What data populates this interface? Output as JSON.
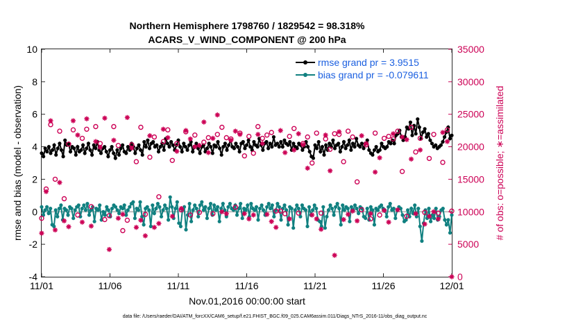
{
  "chart_data": {
    "type": "line",
    "title": "Northern Hemisphere 1798760 / 1829542 = 98.318%",
    "subtitle": "ACARS_V_WIND_COMPONENT @ 200 hPa",
    "xlabel": "Nov.01,2016 00:00:00 start",
    "ylabel": "rmse and bias (model - observation)",
    "ylabel_right": "# of obs: o=possible; ∗=assimilated",
    "footer": "data file: /Users/raeder/DAI/ATM_forcXX/CAM6_setup/f.e21.FHIST_BGC.f09_025.CAM6assim.011/Diags_NTrS_2016-11/obs_diag_output.nc",
    "xlim": [
      0,
      30
    ],
    "ylim": [
      -4,
      10
    ],
    "ylim_right": [
      0,
      35000
    ],
    "x_ticks": [
      0,
      5,
      10,
      15,
      20,
      25,
      30
    ],
    "x_tick_labels": [
      "11/01",
      "11/06",
      "11/11",
      "11/16",
      "11/21",
      "11/26",
      "12/01"
    ],
    "y_ticks": [
      -4,
      -2,
      0,
      2,
      4,
      6,
      8,
      10
    ],
    "y_tick_labels": [
      "-4",
      "-2",
      "0",
      "2",
      "4",
      "6",
      "8",
      "10"
    ],
    "y_right_ticks": [
      0,
      5000,
      10000,
      15000,
      20000,
      25000,
      30000,
      35000
    ],
    "y_right_tick_labels": [
      "0",
      "5000",
      "10000",
      "15000",
      "20000",
      "25000",
      "30000",
      "35000"
    ],
    "legend": [
      {
        "name": "rmse grand pr = 3.9515",
        "color": "#000000"
      },
      {
        "name": "bias grand pr = -0.079611",
        "color": "#108080"
      }
    ],
    "series": [
      {
        "name": "rmse",
        "color": "#000000",
        "values": [
          3.6,
          3.4,
          3.9,
          3.7,
          4.0,
          3.6,
          3.8,
          4.1,
          3.5,
          3.9,
          4.2,
          3.8,
          3.4,
          4.4,
          4.1,
          4.2,
          3.7,
          4.0,
          3.9,
          3.5,
          4.0,
          3.7,
          3.8,
          4.1,
          3.6,
          3.9,
          4.2,
          3.8,
          3.5,
          4.1,
          3.9,
          4.3,
          3.8,
          3.6,
          3.9,
          4.0,
          3.7,
          3.4,
          3.8,
          4.0,
          3.6,
          3.3,
          3.8,
          3.5,
          3.9,
          4.1,
          3.7,
          3.6,
          4.0,
          3.8,
          4.2,
          4.0,
          3.6,
          3.9,
          4.1,
          3.8,
          3.5,
          4.3,
          4.0,
          4.4,
          3.9,
          4.2,
          4.3,
          4.0,
          4.1,
          3.7,
          4.0,
          4.2,
          3.8,
          4.5,
          4.2,
          4.0,
          4.3,
          4.1,
          3.8,
          4.1,
          4.4,
          4.0,
          3.7,
          4.2,
          4.0,
          3.8,
          4.1,
          4.3,
          3.7,
          4.0,
          4.2,
          3.9,
          3.6,
          4.0,
          4.1,
          3.7,
          3.9,
          4.2,
          4.0,
          3.6,
          4.1,
          4.0,
          4.3,
          3.9,
          3.5,
          4.0,
          4.2,
          3.8,
          4.1,
          4.4,
          4.0,
          3.9,
          4.2,
          4.0,
          3.7,
          4.2,
          4.3,
          3.9,
          4.1,
          4.4,
          4.0,
          3.8,
          4.3,
          4.1,
          4.0,
          4.5,
          4.1,
          3.8,
          4.2,
          4.3,
          3.9,
          4.2,
          4.0,
          4.6,
          4.1,
          4.2,
          4.0,
          4.3,
          4.0,
          4.4,
          4.2,
          4.1,
          4.3,
          3.8,
          4.2,
          4.0,
          3.9,
          4.2,
          4.1,
          3.8,
          4.0,
          4.3,
          4.0,
          3.7,
          3.4,
          3.3,
          4.1,
          3.9,
          4.3,
          3.7,
          4.0,
          3.5,
          4.1,
          3.8,
          4.2,
          4.0,
          4.4,
          3.9,
          4.1,
          4.2,
          3.7,
          4.0,
          4.3,
          3.9,
          4.1,
          4.4,
          3.8,
          4.2,
          4.0,
          4.5,
          4.1,
          4.0,
          4.2,
          3.9,
          4.2,
          4.4,
          3.8,
          3.6,
          3.5,
          3.8,
          4.0,
          3.7,
          3.8,
          4.2,
          4.0,
          3.9,
          4.0,
          4.3,
          4.2,
          4.4,
          4.2,
          4.7,
          4.8,
          5.0,
          4.6,
          4.4,
          4.6,
          5.2,
          5.1,
          5.5,
          4.7,
          5.3,
          4.8,
          5.7,
          5.2,
          4.5,
          4.9,
          5.1,
          4.6,
          4.8,
          4.4,
          4.2,
          4.0,
          4.1,
          3.9,
          4.0,
          4.1,
          4.3,
          4.6,
          4.9,
          5.2,
          4.5,
          4.7
        ]
      },
      {
        "name": "bias",
        "color": "#108080",
        "values": [
          0.3,
          -0.2,
          0.1,
          0.3,
          -0.1,
          0.2,
          -0.8,
          -0.9,
          0.1,
          -0.3,
          0.2,
          0.4,
          -0.5,
          0.2,
          0.1,
          -0.2,
          0.3,
          0.2,
          -0.4,
          0.1,
          0.3,
          0.4,
          -0.3,
          0.2,
          0.4,
          0.1,
          0.5,
          -0.2,
          0.1,
          0.3,
          -0.6,
          0.2,
          0.1,
          0.4,
          -0.5,
          0.0,
          -0.2,
          0.3,
          0.1,
          -0.3,
          0.2,
          0.4,
          0.3,
          0.1,
          -0.1,
          0.3,
          0.2,
          0.4,
          -0.2,
          0.1,
          0.3,
          0.5,
          0.6,
          -0.4,
          0.2,
          0.1,
          0.6,
          -0.3,
          -0.8,
          0.2,
          0.3,
          0.1,
          -0.9,
          0.4,
          -0.1,
          0.2,
          0.5,
          0.3,
          -0.3,
          0.1,
          0.4,
          0.2,
          -0.5,
          0.9,
          0.3,
          -0.4,
          0.2,
          0.6,
          -0.7,
          -0.9,
          0.1,
          0.3,
          -1.1,
          -0.2,
          0.5,
          -0.6,
          0.1,
          0.4,
          0.2,
          -0.3,
          0.4,
          0.6,
          0.1,
          0.3,
          -0.4,
          0.2,
          0.5,
          -0.2,
          0.4,
          0.1,
          0.3,
          -0.6,
          0.2,
          0.5,
          0.1,
          -0.3,
          0.3,
          0.5,
          0.2,
          0.1,
          0.4,
          -0.2,
          0.2,
          0.5,
          -0.4,
          0.2,
          0.1,
          0.4,
          -0.3,
          0.5,
          0.2,
          0.1,
          0.3,
          -0.5,
          0.2,
          0.4,
          0.1,
          -0.2,
          0.3,
          0.5,
          0.2,
          0.4,
          -0.3,
          0.1,
          0.5,
          0.3,
          -0.5,
          0.2,
          0.4,
          0.1,
          -0.8,
          0.3,
          0.2,
          -1.0,
          0.1,
          0.4,
          0.2,
          -0.3,
          0.4,
          0.2,
          0.1,
          -0.9,
          0.3,
          -0.2,
          0.1,
          0.4,
          0.2,
          -0.5,
          -0.6,
          -0.9,
          0.3,
          -1.0,
          -0.3,
          0.1,
          0.4,
          0.2,
          -0.2,
          0.3,
          0.5,
          0.2,
          -0.8,
          0.4,
          0.1,
          0.3,
          0.2,
          -0.6,
          0.3,
          0.1,
          0.4,
          0.2,
          -0.1,
          0.3,
          0.2,
          -0.3,
          -0.4,
          0.2,
          -0.5,
          0.3,
          0.1,
          -0.8,
          0.2,
          0.1,
          0.3,
          0.4,
          0.2,
          0.1,
          -0.3,
          0.3,
          0.5,
          0.1,
          0.2,
          -0.4,
          0.1,
          0.3,
          0.2,
          -0.2,
          -0.6,
          -0.5,
          0.1,
          -0.3,
          0.2,
          -0.1,
          0.4,
          -0.3,
          0.2,
          -0.9,
          -1.8,
          -0.7,
          0.1,
          -0.4,
          0.2,
          -0.6,
          -0.2,
          -0.4,
          0.2,
          -0.5,
          -0.3,
          0.1,
          0.2,
          -0.5,
          -0.8,
          -0.5,
          -1.3,
          -0.2
        ]
      },
      {
        "name": "possible obs",
        "color": "#cc0055",
        "axis": "right",
        "marker": "o",
        "values": [
          9000,
          13500,
          23400,
          15000,
          22400,
          12000,
          20400,
          22600,
          9500,
          21300,
          22700,
          10800,
          23100,
          20500,
          8800,
          9400,
          23100,
          20200,
          7100,
          8700,
          20300,
          17700,
          23000,
          9600,
          18400,
          21500,
          12300,
          20800,
          22600,
          17900,
          20500,
          10300,
          22300,
          9500,
          21800,
          9900,
          20700,
          21400,
          9700,
          21900,
          23000,
          21400,
          21200,
          10700,
          22100,
          18600,
          21600,
          19000,
          23100,
          21300,
          21800,
          22200,
          10100,
          10100,
          9700,
          21600,
          22800,
          9800,
          20500,
          21500,
          17500,
          22100,
          9800,
          21200,
          19600,
          22000,
          21900,
          17700,
          22400,
          21500,
          14600,
          10300,
          20300,
          8900,
          22100,
          9500,
          21300,
          21600,
          21200,
          22400,
          16200,
          9300,
          23000,
          19200,
          21300,
          9900,
          18200,
          21900,
          9800,
          17600,
          22600,
          10100
        ]
      },
      {
        "name": "assimilated obs",
        "color": "#cc0055",
        "axis": "right",
        "marker": "*",
        "values": [
          6700,
          13100,
          24000,
          7200,
          14500,
          8600,
          7700,
          24000,
          21800,
          8400,
          24300,
          7800,
          20800,
          19900,
          24400,
          4200,
          21000,
          9000,
          9600,
          24500,
          19800,
          7600,
          8700,
          6300,
          21700,
          7600,
          8200,
          22700,
          21400,
          9300,
          19300,
          10500,
          22500,
          21200,
          20000,
          20200,
          23800,
          19100,
          21300,
          24900,
          10000,
          9700,
          21000,
          22400,
          21900,
          9700,
          8900,
          9500,
          21900,
          20500,
          9600,
          8500,
          7600,
          22500,
          19100,
          8900,
          19500,
          22000,
          20300,
          16700,
          9500,
          8900,
          7300,
          21800,
          16300,
          3300,
          22300,
          8800,
          9600,
          10100,
          8600,
          21700,
          20500,
          9700,
          16100,
          18300,
          10200,
          8400,
          22000,
          10300,
          21500,
          21100,
          18100,
          9700,
          19500,
          8100,
          9300,
          10000,
          8900,
          22200,
          20800,
          0
        ]
      }
    ]
  }
}
